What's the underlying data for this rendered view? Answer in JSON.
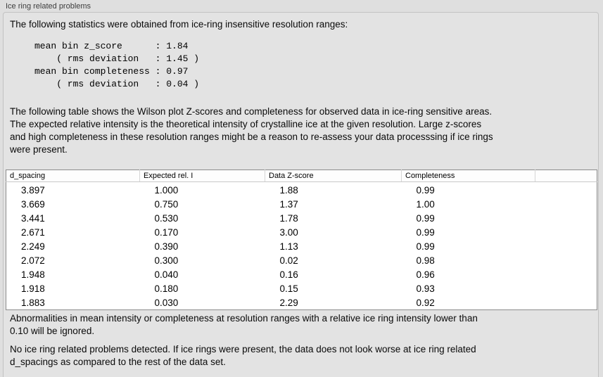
{
  "panel": {
    "title": "Ice ring related problems"
  },
  "intro": "The following statistics were obtained from ice-ring insensitive resolution ranges:",
  "stats_block": "mean bin z_score      : 1.84\n    ( rms deviation   : 1.45 )\nmean bin completeness : 0.97\n    ( rms deviation   : 0.04 )",
  "stats": {
    "mean_bin_z_score": "1.84",
    "z_score_rms_deviation": "1.45",
    "mean_bin_completeness": "0.97",
    "completeness_rms_deviation": "0.04"
  },
  "description": "The following table shows the Wilson plot Z-scores and completeness for observed data in ice-ring sensitive areas.\nThe expected relative intensity is the theoretical intensity of crystalline ice at the given resolution. Large z-scores\nand high completeness in these resolution ranges might be a reason to re-assess your data processsing if ice rings\nwere present.",
  "table": {
    "columns": [
      "d_spacing",
      "Expected rel. I",
      "Data Z-score",
      "Completeness"
    ],
    "rows": [
      [
        "3.897",
        "1.000",
        "1.88",
        "0.99"
      ],
      [
        "3.669",
        "0.750",
        "1.37",
        "1.00"
      ],
      [
        "3.441",
        "0.530",
        "1.78",
        "0.99"
      ],
      [
        "2.671",
        "0.170",
        "3.00",
        "0.99"
      ],
      [
        "2.249",
        "0.390",
        "1.13",
        "0.99"
      ],
      [
        "2.072",
        "0.300",
        "0.02",
        "0.98"
      ],
      [
        "1.948",
        "0.040",
        "0.16",
        "0.96"
      ],
      [
        "1.918",
        "0.180",
        "0.15",
        "0.93"
      ],
      [
        "1.883",
        "0.030",
        "2.29",
        "0.92"
      ]
    ]
  },
  "note_ignore": "Abnormalities in mean intensity or completeness at resolution ranges with a relative ice ring intensity lower than\n0.10 will be ignored.",
  "conclusion": "No ice ring related problems detected. If ice rings were present, the data does not look worse at ice ring related\nd_spacings as compared to the rest of the data set."
}
